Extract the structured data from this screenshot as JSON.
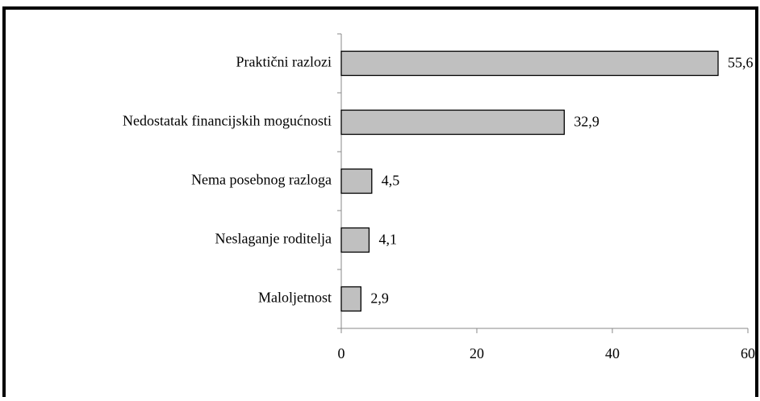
{
  "chart_data": {
    "type": "bar",
    "orientation": "horizontal",
    "categories": [
      "Praktični razlozi",
      "Nedostatak financijskih mogućnosti",
      "Nema posebnog razloga",
      "Neslaganje roditelja",
      "Maloljetnost"
    ],
    "values": [
      55.6,
      32.9,
      4.5,
      4.1,
      2.9
    ],
    "value_labels": [
      "55,6",
      "32,9",
      "4,5",
      "4,1",
      "2,9"
    ],
    "color": "#c0c0c0",
    "xlim": [
      0,
      60
    ],
    "xticks": [
      0,
      20,
      40,
      60
    ]
  }
}
